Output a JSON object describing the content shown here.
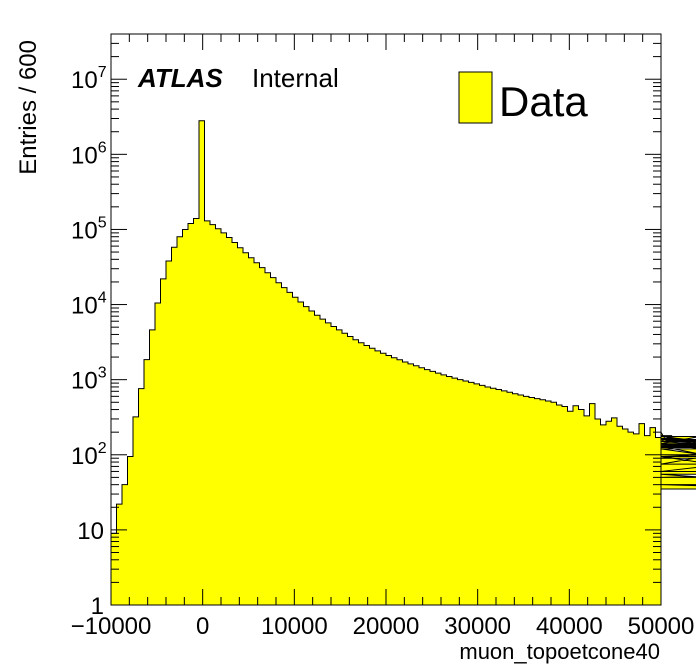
{
  "chart_data": {
    "type": "histogram",
    "x_label": "muon_topoetcone40",
    "y_label": "Entries / 600",
    "x_range": [
      -10000,
      50000
    ],
    "y_range": [
      1,
      40000000
    ],
    "y_scale": "log",
    "bin_width": 600,
    "x_ticks": [
      -10000,
      0,
      10000,
      20000,
      30000,
      40000,
      50000
    ],
    "x_tick_labels": [
      "−10000",
      "0",
      "10000",
      "20000",
      "30000",
      "40000",
      "50000"
    ],
    "y_ticks": [
      {
        "value": 1,
        "base": "1",
        "exp": ""
      },
      {
        "value": 10,
        "base": "10",
        "exp": ""
      },
      {
        "value": 100,
        "base": "10",
        "exp": "2"
      },
      {
        "value": 1000,
        "base": "10",
        "exp": "3"
      },
      {
        "value": 10000,
        "base": "10",
        "exp": "4"
      },
      {
        "value": 100000,
        "base": "10",
        "exp": "5"
      },
      {
        "value": 1000000,
        "base": "10",
        "exp": "6"
      },
      {
        "value": 10000000,
        "base": "10",
        "exp": "7"
      }
    ],
    "fill_color": "#ffff00",
    "line_color": "#000000",
    "legend": {
      "position": "top-right",
      "entries": [
        {
          "name": "Data",
          "color": "#ffff00"
        }
      ]
    },
    "experiment_label": "ATLAS",
    "status_label": "Internal",
    "series": [
      {
        "name": "Data",
        "values": [
          9,
          22,
          40,
          95,
          320,
          760,
          1850,
          4600,
          10500,
          22000,
          38000,
          58000,
          80000,
          100000,
          120000,
          140000,
          2800000,
          130000,
          116000,
          102000,
          90000,
          78000,
          67000,
          57000,
          49000,
          42000,
          36000,
          31000,
          26500,
          22800,
          19500,
          16800,
          14500,
          12500,
          10800,
          9400,
          8200,
          7200,
          6400,
          5700,
          5100,
          4600,
          4150,
          3750,
          3400,
          3100,
          2850,
          2620,
          2420,
          2250,
          2100,
          1960,
          1840,
          1720,
          1620,
          1530,
          1440,
          1360,
          1290,
          1220,
          1160,
          1100,
          1050,
          1000,
          960,
          920,
          880,
          840,
          800,
          770,
          740,
          710,
          680,
          650,
          625,
          600,
          580,
          560,
          540,
          520,
          500,
          460,
          440,
          380,
          450,
          400,
          330,
          480,
          300,
          250,
          280,
          310,
          240,
          220,
          200,
          190,
          260,
          180,
          230,
          170,
          200,
          150,
          180,
          165,
          160,
          150,
          140,
          175,
          150,
          135,
          130,
          160,
          150,
          160,
          125,
          140,
          100,
          90,
          130,
          120,
          75,
          140,
          130,
          60,
          95,
          50,
          55,
          40,
          35
        ]
      }
    ]
  }
}
